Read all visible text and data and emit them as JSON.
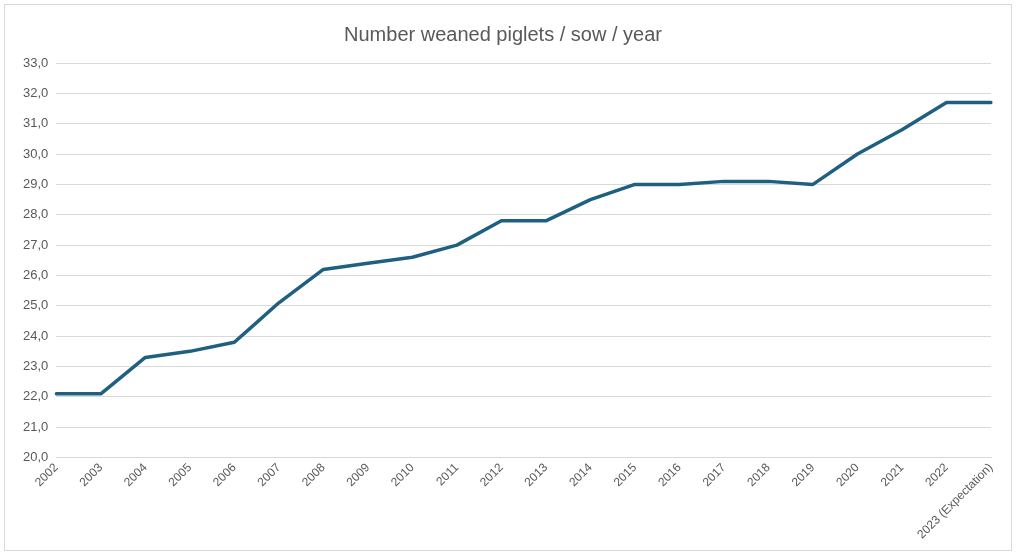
{
  "chart_data": {
    "type": "line",
    "title": "Number weaned piglets / sow / year",
    "categories": [
      "2002",
      "2003",
      "2004",
      "2005",
      "2006",
      "2007",
      "2008",
      "2009",
      "2010",
      "2011",
      "2012",
      "2013",
      "2014",
      "2015",
      "2016",
      "2017",
      "2018",
      "2019",
      "2020",
      "2021",
      "2022",
      "2023 (Expectation)"
    ],
    "series": [
      {
        "color": "#1f6080",
        "values": [
          22.1,
          22.1,
          23.3,
          23.5,
          23.8,
          25.1,
          26.2,
          26.4,
          26.6,
          27.0,
          27.8,
          27.8,
          28.5,
          29.0,
          29.0,
          29.1,
          29.1,
          29.0,
          30.0,
          30.8,
          31.7,
          31.7
        ]
      }
    ],
    "ylim": [
      20,
      33
    ],
    "yticks": [
      {
        "value": 20,
        "label": "20,0"
      },
      {
        "value": 21,
        "label": "21,0"
      },
      {
        "value": 22,
        "label": "22,0"
      },
      {
        "value": 23,
        "label": "23,0"
      },
      {
        "value": 24,
        "label": "24,0"
      },
      {
        "value": 25,
        "label": "25,0"
      },
      {
        "value": 26,
        "label": "26,0"
      },
      {
        "value": 27,
        "label": "27,0"
      },
      {
        "value": 28,
        "label": "28,0"
      },
      {
        "value": 29,
        "label": "29,0"
      },
      {
        "value": 30,
        "label": "30,0"
      },
      {
        "value": 31,
        "label": "31,0"
      },
      {
        "value": 32,
        "label": "32,0"
      },
      {
        "value": 33,
        "label": "33,0"
      }
    ],
    "grid": "y",
    "legend": false,
    "marker": "none",
    "line_style": "solid"
  }
}
